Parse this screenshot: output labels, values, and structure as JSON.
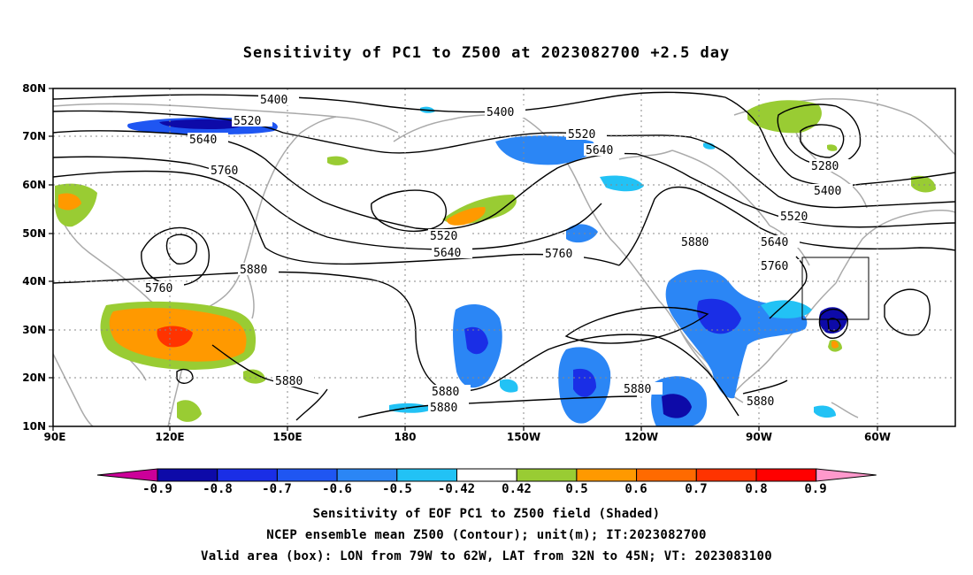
{
  "title": "Sensitivity of PC1 to Z500 at 2023082700 +2.5 day",
  "lat_labels": [
    "80N",
    "70N",
    "60N",
    "50N",
    "40N",
    "30N",
    "20N",
    "10N"
  ],
  "lon_labels": [
    "90E",
    "120E",
    "150E",
    "180",
    "150W",
    "120W",
    "90W",
    "60W"
  ],
  "contour_labels": [
    "5400",
    "5400",
    "5520",
    "5640",
    "5520",
    "5640",
    "5760",
    "5280",
    "5400",
    "5520",
    "5640",
    "5760",
    "5880",
    "5520",
    "5640",
    "5760",
    "5760",
    "5880",
    "5880",
    "5880",
    "5880",
    "5880",
    "5880"
  ],
  "colorbar": {
    "labels": [
      "-0.9",
      "-0.8",
      "-0.7",
      "-0.6",
      "-0.5",
      "-0.42",
      "0.42",
      "0.5",
      "0.6",
      "0.7",
      "0.8",
      "0.9"
    ],
    "colors": [
      "#cc0099",
      "#0d0aa8",
      "#1a2ee6",
      "#1f56f2",
      "#2b86f5",
      "#22c2f5",
      "#ffffff",
      "#99cc33",
      "#ff9900",
      "#ff6a00",
      "#ff3300",
      "#ff0000",
      "#ff99cc"
    ]
  },
  "valid_box": {
    "lon_min": -79,
    "lon_max": -62,
    "lat_min": 32,
    "lat_max": 45
  },
  "footer": {
    "line1": "Sensitivity of EOF PC1 to Z500 field (Shaded)",
    "line2": "NCEP ensemble mean Z500 (Contour); unit(m); IT:2023082700",
    "line3": "Valid area (box): LON from 79W to 62W, LAT from 32N to 45N; VT: 2023083100"
  }
}
